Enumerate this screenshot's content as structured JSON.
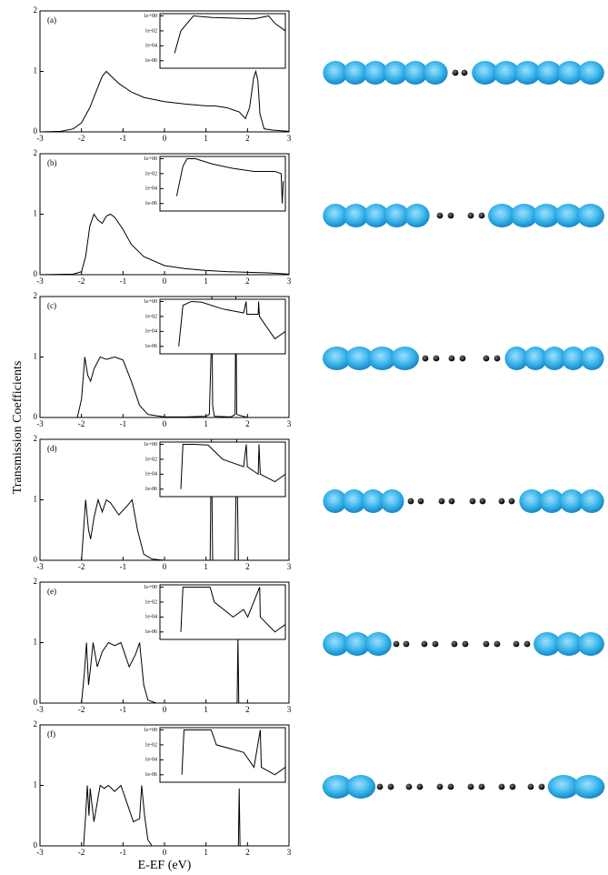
{
  "chart_data": [
    {
      "type": "line",
      "label": "(a)",
      "ylabel": "Transmission Coefficients",
      "color": "#000000",
      "x": [
        -3,
        -2.5,
        -2.2,
        -2,
        -1.8,
        -1.6,
        -1.5,
        -1.4,
        -1.3,
        -1.1,
        -0.8,
        -0.5,
        0,
        0.5,
        1,
        1.2,
        1.5,
        1.8,
        1.95,
        2.05,
        2.15,
        2.2,
        2.25,
        2.3,
        2.4,
        2.6,
        3
      ],
      "values": [
        0,
        0.01,
        0.05,
        0.15,
        0.4,
        0.75,
        0.92,
        1.0,
        0.93,
        0.8,
        0.66,
        0.57,
        0.5,
        0.46,
        0.43,
        0.43,
        0.4,
        0.33,
        0.22,
        0.4,
        0.9,
        1.0,
        0.85,
        0.3,
        0.05,
        0.03,
        0.01
      ],
      "xlim": [
        -3,
        3
      ],
      "ylim": [
        0,
        2
      ],
      "xticks": [
        -3,
        -2,
        -1,
        0,
        1,
        2,
        3
      ],
      "yticks": [
        0,
        1,
        2
      ],
      "inset": {
        "type": "line",
        "log_scale": true,
        "color": "#000000",
        "xlim": [
          -3,
          3
        ],
        "ylim": [
          1e-07,
          2
        ],
        "yticks": [
          {
            "value": 1,
            "label": "1e+00"
          },
          {
            "value": 0.01,
            "label": "1e-02"
          },
          {
            "value": 0.0001,
            "label": "1e-04"
          },
          {
            "value": 1e-06,
            "label": "1e-06"
          }
        ],
        "x": [
          -2.3,
          -2,
          -1.4,
          -0.5,
          0.5,
          1.5,
          2.2,
          2.5,
          3
        ],
        "values": [
          1e-05,
          0.01,
          1,
          0.6,
          0.5,
          0.4,
          1,
          0.1,
          0.01
        ]
      }
    },
    {
      "type": "line",
      "label": "(b)",
      "color": "#000000",
      "x": [
        -3,
        -2.2,
        -2,
        -1.9,
        -1.8,
        -1.7,
        -1.6,
        -1.5,
        -1.4,
        -1.3,
        -1.2,
        -1,
        -0.8,
        -0.5,
        0,
        0.5,
        1,
        1.5,
        2,
        2.5,
        3
      ],
      "values": [
        0,
        0.01,
        0.05,
        0.3,
        0.8,
        1.0,
        0.9,
        0.85,
        0.97,
        1.0,
        0.95,
        0.75,
        0.5,
        0.3,
        0.15,
        0.1,
        0.07,
        0.05,
        0.04,
        0.03,
        0.01
      ],
      "xlim": [
        -3,
        3
      ],
      "ylim": [
        0,
        2
      ],
      "xticks": [
        -3,
        -2,
        -1,
        0,
        1,
        2,
        3
      ],
      "yticks": [
        0,
        1,
        2
      ],
      "inset": {
        "type": "line",
        "log_scale": true,
        "color": "#000000",
        "xlim": [
          -3,
          3
        ],
        "ylim": [
          1e-07,
          2
        ],
        "yticks": [
          {
            "value": 1,
            "label": "1e+00"
          },
          {
            "value": 0.01,
            "label": "1e-02"
          },
          {
            "value": 0.0001,
            "label": "1e-04"
          },
          {
            "value": 1e-06,
            "label": "1e-06"
          }
        ],
        "x": [
          -2.2,
          -1.9,
          -1.7,
          -1.3,
          -0.5,
          0.5,
          1.5,
          2.5,
          2.8,
          2.85,
          2.9
        ],
        "values": [
          1e-05,
          0.1,
          1,
          1,
          0.2,
          0.05,
          0.02,
          0.02,
          0.01,
          1e-06,
          0.001
        ]
      }
    },
    {
      "type": "line",
      "label": "(c)",
      "color": "#000000",
      "x": [
        -3,
        -2.1,
        -2,
        -1.92,
        -1.85,
        -1.78,
        -1.7,
        -1.55,
        -1.4,
        -1.2,
        -1,
        -0.8,
        -0.6,
        -0.4,
        0,
        0.5,
        1,
        1.08,
        1.12,
        1.14,
        1.16,
        1.2,
        1.6,
        1.7,
        1.72,
        1.74,
        2,
        3
      ],
      "values": [
        0,
        0,
        0.3,
        1.0,
        0.7,
        0.6,
        0.8,
        1.0,
        0.96,
        1.0,
        0.95,
        0.6,
        0.2,
        0.05,
        0.01,
        0.01,
        0.02,
        0.05,
        1.0,
        2.0,
        0.2,
        0.02,
        0.01,
        0.05,
        2.0,
        0.05,
        0,
        0
      ],
      "xlim": [
        -3,
        3
      ],
      "ylim": [
        0,
        2
      ],
      "xticks": [
        -3,
        -2,
        -1,
        0,
        1,
        2,
        3
      ],
      "yticks": [
        0,
        1,
        2
      ],
      "inset": {
        "type": "line",
        "log_scale": true,
        "color": "#000000",
        "xlim": [
          -3,
          3
        ],
        "ylim": [
          1e-07,
          2
        ],
        "yticks": [
          {
            "value": 1,
            "label": "1e+00"
          },
          {
            "value": 0.01,
            "label": "1e-02"
          },
          {
            "value": 0.0001,
            "label": "1e-04"
          },
          {
            "value": 1e-06,
            "label": "1e-06"
          }
        ],
        "x": [
          -2.1,
          -1.9,
          -1.5,
          -1,
          0,
          1,
          1.12,
          1.16,
          1.7,
          1.72,
          1.76,
          2.5,
          3
        ],
        "values": [
          1e-06,
          0.3,
          1,
          0.8,
          0.1,
          0.03,
          1,
          0.02,
          0.02,
          1,
          0.01,
          1e-05,
          0.0001
        ]
      }
    },
    {
      "type": "line",
      "label": "(d)",
      "color": "#000000",
      "x": [
        -3,
        -2,
        -1.95,
        -1.9,
        -1.83,
        -1.78,
        -1.7,
        -1.6,
        -1.5,
        -1.4,
        -1.3,
        -1.1,
        -0.9,
        -0.78,
        -0.65,
        -0.5,
        -0.3,
        0,
        1.1,
        1.13,
        1.16,
        1.7,
        1.74,
        1.78,
        3
      ],
      "values": [
        0,
        0,
        0.5,
        1.0,
        0.5,
        0.35,
        0.7,
        1.0,
        0.8,
        1.0,
        0.95,
        0.75,
        0.9,
        1.0,
        0.5,
        0.1,
        0.02,
        0,
        0,
        2,
        0,
        0,
        2,
        0,
        0
      ],
      "xlim": [
        -3,
        3
      ],
      "ylim": [
        0,
        2
      ],
      "xticks": [
        -3,
        -2,
        -1,
        0,
        1,
        2,
        3
      ],
      "yticks": [
        0,
        1,
        2
      ],
      "inset": {
        "type": "line",
        "log_scale": true,
        "color": "#000000",
        "xlim": [
          -3,
          3
        ],
        "ylim": [
          1e-07,
          2
        ],
        "yticks": [
          {
            "value": 1,
            "label": "1e+00"
          },
          {
            "value": 0.01,
            "label": "1e-02"
          },
          {
            "value": 0.0001,
            "label": "1e-04"
          },
          {
            "value": 1e-06,
            "label": "1e-06"
          }
        ],
        "x": [
          -2,
          -1.9,
          -1.4,
          -0.7,
          0,
          1,
          1.13,
          1.18,
          1.7,
          1.74,
          1.8,
          2.5,
          3
        ],
        "values": [
          1e-06,
          1,
          1,
          0.8,
          0.01,
          0.001,
          1,
          0.001,
          0.0001,
          1,
          0.0001,
          1e-05,
          0.0001
        ]
      }
    },
    {
      "type": "line",
      "label": "(e)",
      "color": "#000000",
      "x": [
        -3,
        -2,
        -1.93,
        -1.88,
        -1.83,
        -1.78,
        -1.72,
        -1.62,
        -1.5,
        -1.35,
        -1.2,
        -1.05,
        -0.95,
        -0.85,
        -0.7,
        -0.6,
        -0.5,
        -0.4,
        -0.2,
        1.75,
        1.77,
        1.79,
        3
      ],
      "values": [
        0,
        0,
        0.5,
        1.0,
        0.3,
        0.6,
        1.0,
        0.6,
        0.85,
        1.0,
        0.95,
        1.0,
        0.8,
        0.6,
        0.8,
        1.0,
        0.3,
        0.05,
        0,
        0,
        1.1,
        0,
        0
      ],
      "xlim": [
        -3,
        3
      ],
      "ylim": [
        0,
        2
      ],
      "xticks": [
        -3,
        -2,
        -1,
        0,
        1,
        2,
        3
      ],
      "yticks": [
        0,
        1,
        2
      ],
      "inset": {
        "type": "line",
        "log_scale": true,
        "color": "#000000",
        "xlim": [
          -3,
          3
        ],
        "ylim": [
          1e-07,
          2
        ],
        "yticks": [
          {
            "value": 1,
            "label": "1e+00"
          },
          {
            "value": 0.01,
            "label": "1e-02"
          },
          {
            "value": 0.0001,
            "label": "1e-04"
          },
          {
            "value": 1e-06,
            "label": "1e-06"
          }
        ],
        "x": [
          -2,
          -1.9,
          -0.6,
          -0.4,
          0.5,
          1,
          1.2,
          1.77,
          1.8,
          2.5,
          3
        ],
        "values": [
          1e-06,
          1,
          1,
          0.01,
          0.0001,
          0.001,
          0.0001,
          1,
          0.0001,
          1e-06,
          1e-05
        ]
      }
    },
    {
      "type": "line",
      "label": "(f)",
      "xlabel": "E-EF (eV)",
      "color": "#000000",
      "x": [
        -3,
        -1.95,
        -1.9,
        -1.86,
        -1.82,
        -1.79,
        -1.75,
        -1.7,
        -1.55,
        -1.45,
        -1.35,
        -1.2,
        -1.05,
        -0.9,
        -0.75,
        -0.6,
        -0.55,
        -0.48,
        -0.4,
        -0.3,
        1.78,
        1.8,
        1.82,
        3
      ],
      "values": [
        0,
        0,
        0.5,
        1.0,
        0.5,
        0.95,
        0.7,
        0.4,
        1.0,
        0.95,
        1.0,
        0.9,
        1.0,
        0.7,
        0.4,
        0.45,
        1.0,
        0.5,
        0.1,
        0,
        0,
        0.95,
        0,
        0
      ],
      "xlim": [
        -3,
        3
      ],
      "ylim": [
        0,
        2
      ],
      "xticks": [
        -3,
        -2,
        -1,
        0,
        1,
        2,
        3
      ],
      "yticks": [
        0,
        1,
        2
      ],
      "inset": {
        "type": "line",
        "log_scale": true,
        "color": "#000000",
        "xlim": [
          -3,
          3
        ],
        "ylim": [
          1e-07,
          2
        ],
        "yticks": [
          {
            "value": 1,
            "label": "1e+00"
          },
          {
            "value": 0.01,
            "label": "1e-02"
          },
          {
            "value": 0.0001,
            "label": "1e-04"
          },
          {
            "value": 1e-06,
            "label": "1e-06"
          }
        ],
        "x": [
          -1.95,
          -1.85,
          -0.55,
          -0.3,
          1,
          1.5,
          1.8,
          1.85,
          2.5,
          3
        ],
        "values": [
          1e-06,
          1,
          1,
          0.01,
          0.001,
          1e-05,
          1,
          1e-05,
          1e-06,
          1e-05
        ]
      }
    }
  ]
}
